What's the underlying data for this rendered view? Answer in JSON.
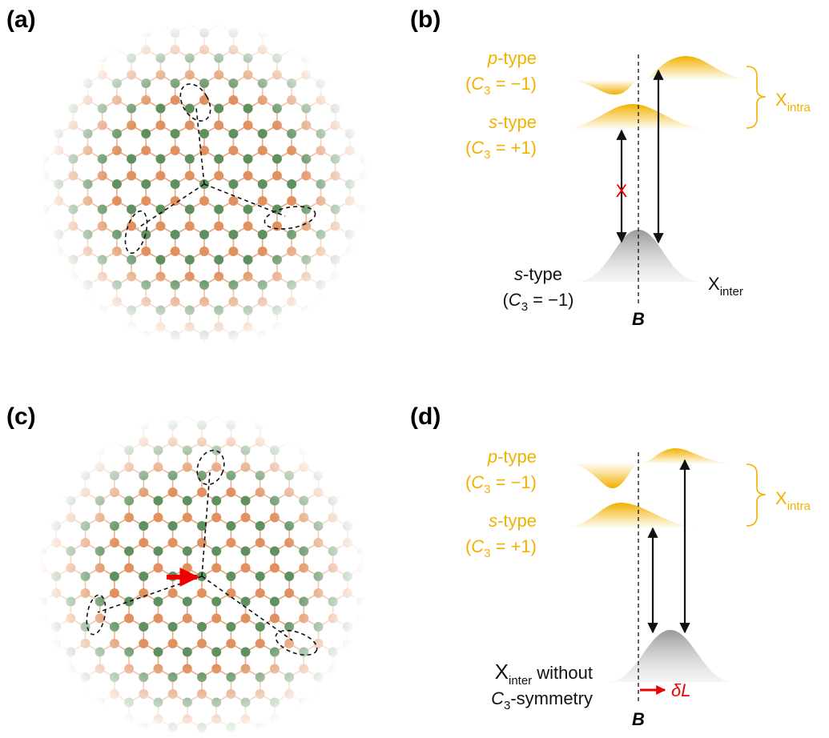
{
  "panels": {
    "a": {
      "label": "(a)"
    },
    "b": {
      "label": "(b)",
      "upper": {
        "name_italic": "p",
        "name_rest": "-type",
        "sym_open": "(",
        "sym_c": "C",
        "sym_sub": "3",
        "sym_rest": " = −1)"
      },
      "middle": {
        "name_italic": "s",
        "name_rest": "-type",
        "sym_open": "(",
        "sym_c": "C",
        "sym_sub": "3",
        "sym_rest": " = +1)"
      },
      "lower": {
        "name_italic": "s",
        "name_rest": "-type",
        "sym_open": "(",
        "sym_c": "C",
        "sym_sub": "3",
        "sym_rest": " = −1)"
      },
      "intra": {
        "main": "X",
        "sub": "intra"
      },
      "inter": {
        "main": "X",
        "sub": "inter"
      },
      "forbidden": "X",
      "field": "B"
    },
    "c": {
      "label": "(c)"
    },
    "d": {
      "label": "(d)",
      "upper": {
        "name_italic": "p",
        "name_rest": "-type",
        "sym_open": "(",
        "sym_c": "C",
        "sym_sub": "3",
        "sym_rest": " = −1)"
      },
      "middle": {
        "name_italic": "s",
        "name_rest": "-type",
        "sym_open": "(",
        "sym_c": "C",
        "sym_sub": "3",
        "sym_rest": " = +1)"
      },
      "intra": {
        "main": "X",
        "sub": "intra"
      },
      "inter": {
        "main": "X",
        "sub": "inter",
        "rest": " without",
        "c": "C",
        "c_sub": "3",
        "c_rest": "-symmetry"
      },
      "field": "B",
      "shift": "δL"
    }
  }
}
